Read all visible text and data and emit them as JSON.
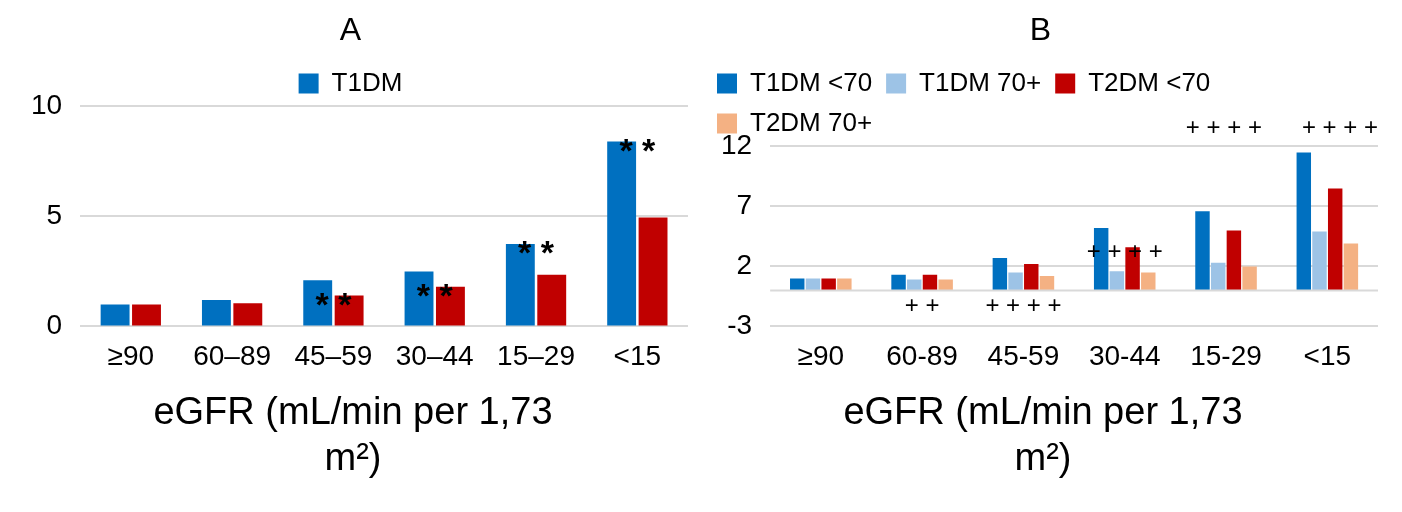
{
  "chart_data": [
    {
      "type": "bar",
      "title": "A",
      "xlabel": "eGFR (mL/min per 1,73 m²)",
      "categories": [
        "≥90",
        "60–89",
        "45–59",
        "30–44",
        "15–29",
        "<15"
      ],
      "series": [
        {
          "name": "T1DM",
          "color": "#0070c0",
          "values": [
            1.0,
            1.2,
            2.1,
            2.5,
            3.75,
            8.4
          ]
        },
        {
          "color": "#c00000",
          "values": [
            1.0,
            1.05,
            1.4,
            1.8,
            2.35,
            4.95
          ]
        }
      ],
      "ylim": [
        0,
        10
      ],
      "yticks": [
        0,
        5,
        10
      ],
      "grid": "y",
      "legend": "top",
      "annotations": [
        {
          "text": "* *",
          "x": "45–59",
          "y": 1.4
        },
        {
          "text": "* *",
          "x": "30–44",
          "y": 1.8
        },
        {
          "text": "* *",
          "x": "15–29",
          "y": 3.75
        },
        {
          "text": "* *",
          "x": "<15",
          "y": 8.4
        }
      ]
    },
    {
      "type": "bar",
      "title": "B",
      "xlabel": "eGFR (mL/min per 1,73 m²)",
      "categories": [
        "≥90",
        "60-89",
        "45-59",
        "30-44",
        "15-29",
        "<15"
      ],
      "series": [
        {
          "name": "T1DM <70",
          "color": "#0070c0",
          "values": [
            1.0,
            1.3,
            2.7,
            5.2,
            6.6,
            11.5
          ]
        },
        {
          "name": "T1DM 70+",
          "color": "#9dc3e6",
          "values": [
            1.0,
            0.9,
            1.5,
            1.6,
            2.3,
            4.9
          ]
        },
        {
          "name": "T2DM <70",
          "color": "#c00000",
          "values": [
            1.0,
            1.3,
            2.2,
            3.6,
            5.0,
            8.5
          ]
        },
        {
          "name": "T2DM 70+",
          "color": "#f4b183",
          "values": [
            1.0,
            0.9,
            1.2,
            1.5,
            2.0,
            3.9
          ]
        }
      ],
      "ylim": [
        -3,
        12
      ],
      "yticks": [
        -3,
        2,
        7,
        12
      ],
      "grid": "y",
      "legend": "top left",
      "annotations": [
        {
          "text": "+ +",
          "x": "60-89",
          "y": 0
        },
        {
          "text": "+ + + +",
          "x": "45-59",
          "y": 0
        },
        {
          "text": "+ + + +",
          "x": "30-44",
          "y": 3.6
        },
        "+ + + +",
        "+ + + +"
      ]
    }
  ]
}
